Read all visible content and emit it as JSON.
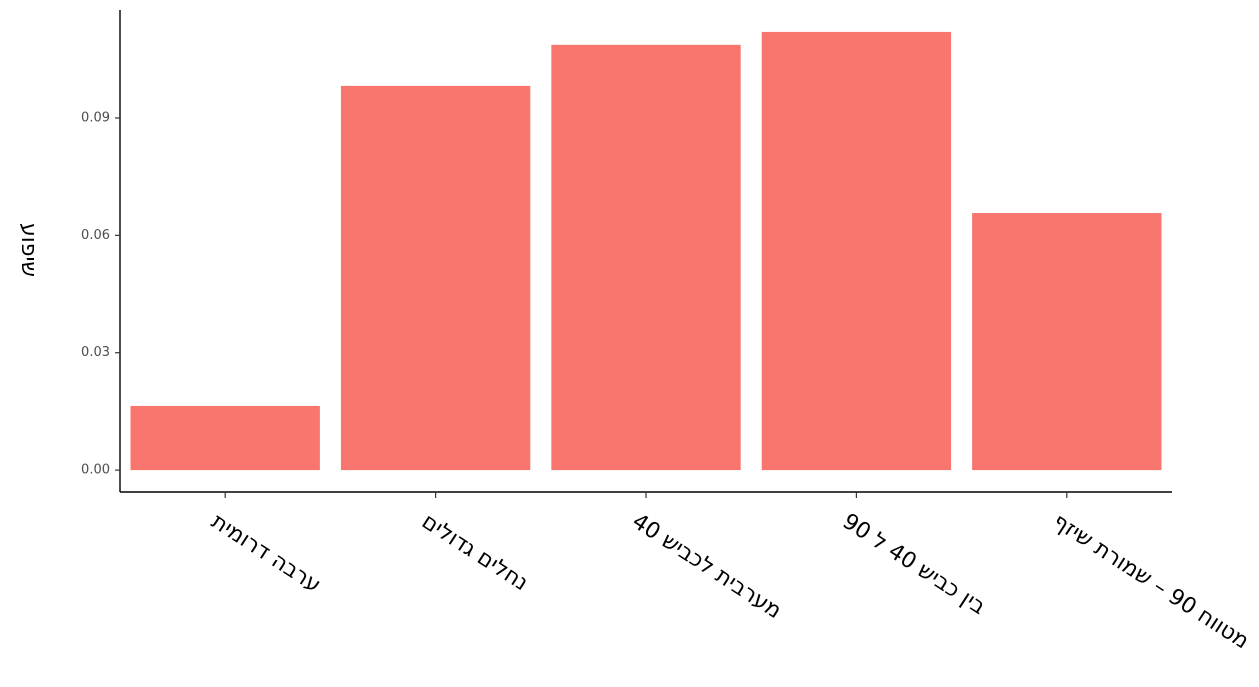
{
  "chart_data": {
    "type": "bar",
    "y_label": "שיפוע",
    "categories": [
      "ערבה דרומית",
      "נחלים גדולים",
      "מערבית לכביש 40",
      "בין כביש 40 ל 90",
      "מטווח 90 – שמורת שיזף"
    ],
    "values": [
      0.0164,
      0.0982,
      0.1087,
      0.112,
      0.0657
    ],
    "color": "#F8766D",
    "ylim": [
      -0.0056,
      0.1176
    ],
    "yticks": [
      {
        "value": 0,
        "label": "0.00"
      },
      0.03,
      0.06,
      0.09
    ],
    "grid": false
  }
}
